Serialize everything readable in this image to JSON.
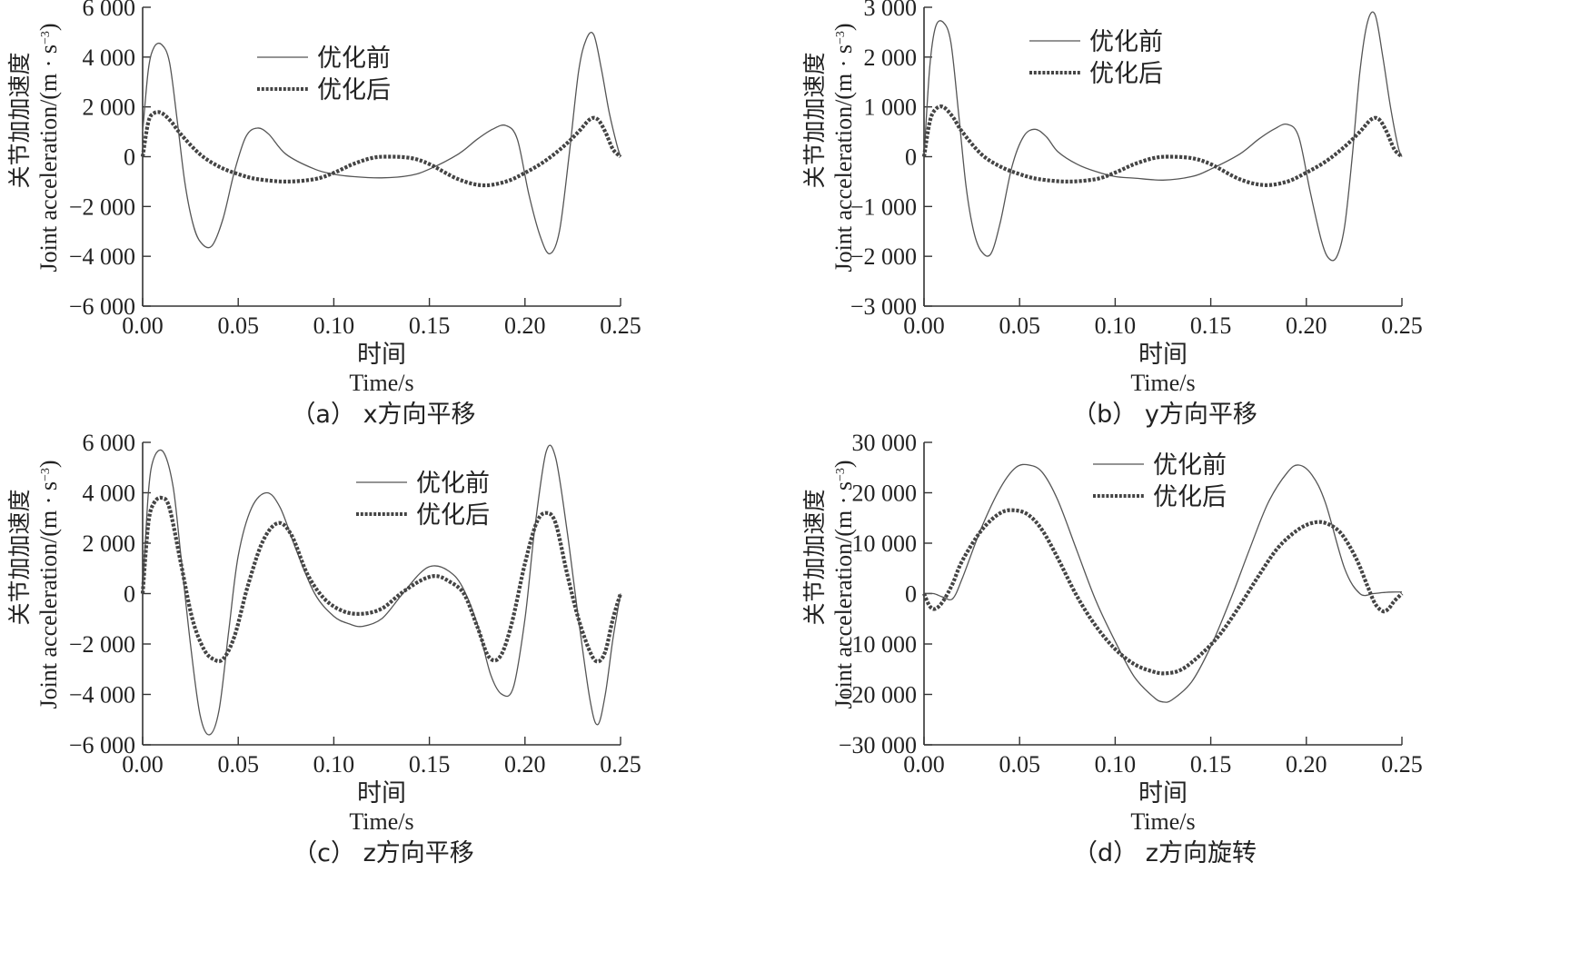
{
  "chart_data": [
    {
      "type": "line",
      "caption": "（a） x方向平移",
      "xlabel_cn": "时间",
      "xlabel_en": "Time/s",
      "ylabel_cn": "关节加加速度",
      "ylabel_en": "Joint acceleration/(m · s",
      "ylabel_unit_sup": "−3",
      "ylabel_unit_end": ")",
      "xlim": [
        0,
        0.25
      ],
      "ylim": [
        -6000,
        6000
      ],
      "xticks": [
        0,
        0.05,
        0.1,
        0.15,
        0.2,
        0.25
      ],
      "xtick_labels": [
        "0.00",
        "0.05",
        "0.10",
        "0.15",
        "0.20",
        "0.25"
      ],
      "yticks": [
        -6000,
        -4000,
        -2000,
        0,
        2000,
        4000,
        6000
      ],
      "ytick_labels": [
        "−6 000",
        "−4 000",
        "−2 000",
        "0",
        "2 000",
        "4 000",
        "6 000"
      ],
      "legend_position": "top-center",
      "series": [
        {
          "name": "优化前",
          "style": "solid",
          "x": [
            0,
            0.003,
            0.006,
            0.01,
            0.014,
            0.018,
            0.022,
            0.026,
            0.03,
            0.036,
            0.042,
            0.048,
            0.054,
            0.06,
            0.066,
            0.075,
            0.09,
            0.1,
            0.11,
            0.125,
            0.14,
            0.15,
            0.165,
            0.175,
            0.183,
            0.19,
            0.196,
            0.202,
            0.208,
            0.213,
            0.218,
            0.223,
            0.228,
            0.232,
            0.236,
            0.24,
            0.244,
            0.248,
            0.25
          ],
          "y": [
            1000,
            3500,
            4400,
            4500,
            3800,
            1500,
            -1000,
            -2600,
            -3400,
            -3600,
            -2500,
            -600,
            800,
            1150,
            900,
            100,
            -500,
            -700,
            -800,
            -850,
            -750,
            -500,
            100,
            700,
            1100,
            1250,
            700,
            -1500,
            -3200,
            -3900,
            -3000,
            0,
            3400,
            4700,
            4900,
            3500,
            1800,
            500,
            0
          ]
        },
        {
          "name": "优化后",
          "style": "dotted",
          "x": [
            0,
            0.003,
            0.006,
            0.01,
            0.015,
            0.02,
            0.03,
            0.04,
            0.05,
            0.06,
            0.075,
            0.09,
            0.1,
            0.11,
            0.12,
            0.128,
            0.14,
            0.15,
            0.165,
            0.178,
            0.19,
            0.2,
            0.21,
            0.22,
            0.228,
            0.234,
            0.238,
            0.242,
            0.246,
            0.25
          ],
          "y": [
            0,
            1400,
            1750,
            1750,
            1400,
            900,
            100,
            -400,
            -700,
            -900,
            -1000,
            -900,
            -650,
            -300,
            -50,
            0,
            -50,
            -300,
            -900,
            -1150,
            -1000,
            -650,
            -200,
            400,
            1000,
            1500,
            1500,
            1000,
            300,
            0
          ]
        }
      ]
    },
    {
      "type": "line",
      "caption": "（b） y方向平移",
      "xlabel_cn": "时间",
      "xlabel_en": "Time/s",
      "ylabel_cn": "关节加加速度",
      "ylabel_en": "Joint acceleration/(m · s",
      "ylabel_unit_sup": "−3",
      "ylabel_unit_end": ")",
      "xlim": [
        0,
        0.25
      ],
      "ylim": [
        -3000,
        3000
      ],
      "xticks": [
        0,
        0.05,
        0.1,
        0.15,
        0.2,
        0.25
      ],
      "xtick_labels": [
        "0.00",
        "0.05",
        "0.10",
        "0.15",
        "0.20",
        "0.25"
      ],
      "yticks": [
        -3000,
        -2000,
        -1000,
        0,
        1000,
        2000,
        3000
      ],
      "ytick_labels": [
        "−3 000",
        "−2 000",
        "−1 000",
        "0",
        "1 000",
        "2 000",
        "3 000"
      ],
      "legend_position": "top-center",
      "series": [
        {
          "name": "优化前",
          "style": "solid",
          "x": [
            0,
            0.003,
            0.006,
            0.01,
            0.014,
            0.018,
            0.022,
            0.026,
            0.03,
            0.035,
            0.04,
            0.046,
            0.052,
            0.058,
            0.064,
            0.07,
            0.08,
            0.09,
            0.1,
            0.11,
            0.125,
            0.14,
            0.15,
            0.165,
            0.175,
            0.183,
            0.19,
            0.196,
            0.202,
            0.208,
            0.212,
            0.216,
            0.22,
            0.224,
            0.228,
            0.232,
            0.236,
            0.24,
            0.244,
            0.248,
            0.25
          ],
          "y": [
            0,
            1800,
            2600,
            2700,
            2300,
            900,
            -600,
            -1500,
            -1900,
            -1950,
            -1300,
            -200,
            400,
            550,
            400,
            100,
            -150,
            -300,
            -400,
            -430,
            -470,
            -400,
            -250,
            50,
            350,
            550,
            650,
            400,
            -700,
            -1700,
            -2050,
            -2000,
            -1400,
            0,
            1700,
            2700,
            2850,
            2000,
            1000,
            200,
            0
          ]
        },
        {
          "name": "优化后",
          "style": "dotted",
          "x": [
            0,
            0.003,
            0.006,
            0.01,
            0.015,
            0.02,
            0.03,
            0.04,
            0.05,
            0.06,
            0.075,
            0.09,
            0.1,
            0.11,
            0.12,
            0.128,
            0.14,
            0.15,
            0.165,
            0.178,
            0.19,
            0.2,
            0.21,
            0.22,
            0.228,
            0.234,
            0.238,
            0.242,
            0.246,
            0.25
          ],
          "y": [
            0,
            700,
            950,
            1000,
            800,
            500,
            50,
            -200,
            -350,
            -450,
            -500,
            -450,
            -320,
            -150,
            -30,
            0,
            -30,
            -150,
            -450,
            -570,
            -500,
            -320,
            -100,
            200,
            500,
            750,
            750,
            500,
            150,
            0
          ]
        }
      ]
    },
    {
      "type": "line",
      "caption": "（c） z方向平移",
      "xlabel_cn": "时间",
      "xlabel_en": "Time/s",
      "ylabel_cn": "关节加加速度",
      "ylabel_en": "Joint acceleration/(m · s",
      "ylabel_unit_sup": "−3",
      "ylabel_unit_end": ")",
      "xlim": [
        0,
        0.25
      ],
      "ylim": [
        -6000,
        6000
      ],
      "xticks": [
        0,
        0.05,
        0.1,
        0.15,
        0.2,
        0.25
      ],
      "xtick_labels": [
        "0.00",
        "0.05",
        "0.10",
        "0.15",
        "0.20",
        "0.25"
      ],
      "yticks": [
        -6000,
        -4000,
        -2000,
        0,
        2000,
        4000,
        6000
      ],
      "ytick_labels": [
        "−6 000",
        "−4 000",
        "−2 000",
        "0",
        "2 000",
        "4 000",
        "6 000"
      ],
      "legend_position": "top-center",
      "series": [
        {
          "name": "优化前",
          "style": "solid",
          "x": [
            0,
            0.003,
            0.006,
            0.011,
            0.016,
            0.02,
            0.025,
            0.03,
            0.035,
            0.04,
            0.045,
            0.05,
            0.057,
            0.065,
            0.072,
            0.08,
            0.09,
            0.1,
            0.108,
            0.115,
            0.125,
            0.135,
            0.145,
            0.152,
            0.16,
            0.167,
            0.175,
            0.182,
            0.188,
            0.194,
            0.2,
            0.205,
            0.211,
            0.216,
            0.222,
            0.228,
            0.234,
            0.238,
            0.242,
            0.246,
            0.25
          ],
          "y": [
            0,
            4000,
            5400,
            5600,
            4200,
            1500,
            -2000,
            -4800,
            -5600,
            -4600,
            -1500,
            1500,
            3400,
            4000,
            3400,
            1800,
            0,
            -900,
            -1200,
            -1300,
            -1000,
            -100,
            800,
            1100,
            900,
            300,
            -1200,
            -3200,
            -4000,
            -3700,
            -1000,
            2500,
            5600,
            5400,
            2500,
            -1000,
            -4200,
            -5200,
            -4000,
            -1800,
            0
          ]
        },
        {
          "name": "优化后",
          "style": "dotted",
          "x": [
            0,
            0.003,
            0.006,
            0.01,
            0.014,
            0.02,
            0.026,
            0.032,
            0.037,
            0.042,
            0.048,
            0.055,
            0.063,
            0.071,
            0.078,
            0.086,
            0.095,
            0.105,
            0.115,
            0.125,
            0.135,
            0.145,
            0.153,
            0.16,
            0.168,
            0.175,
            0.181,
            0.187,
            0.193,
            0.2,
            0.206,
            0.211,
            0.216,
            0.222,
            0.228,
            0.234,
            0.238,
            0.242,
            0.246,
            0.25
          ],
          "y": [
            0,
            2800,
            3600,
            3800,
            3400,
            1200,
            -1000,
            -2200,
            -2600,
            -2600,
            -1700,
            300,
            2100,
            2800,
            2300,
            800,
            -200,
            -700,
            -800,
            -600,
            0,
            500,
            700,
            500,
            0,
            -1300,
            -2500,
            -2500,
            -1200,
            1200,
            2800,
            3200,
            2800,
            800,
            -1000,
            -2300,
            -2700,
            -2300,
            -1000,
            0
          ]
        }
      ]
    },
    {
      "type": "line",
      "caption": "（d） z方向旋转",
      "xlabel_cn": "时间",
      "xlabel_en": "Time/s",
      "ylabel_cn": "关节加加速度",
      "ylabel_en": "Joint acceleration/(m · s",
      "ylabel_unit_sup": "−3",
      "ylabel_unit_end": ")",
      "xlim": [
        0,
        0.25
      ],
      "ylim": [
        -30000,
        30000
      ],
      "xticks": [
        0,
        0.05,
        0.1,
        0.15,
        0.2,
        0.25
      ],
      "xtick_labels": [
        "0.00",
        "0.05",
        "0.10",
        "0.15",
        "0.20",
        "0.25"
      ],
      "yticks": [
        -30000,
        -20000,
        -10000,
        0,
        10000,
        20000,
        30000
      ],
      "ytick_labels": [
        "−30 000",
        "−20 000",
        "−10 000",
        "0",
        "10 000",
        "20 000",
        "30 000"
      ],
      "legend_position": "top-center",
      "series": [
        {
          "name": "优化前",
          "style": "solid",
          "x": [
            0,
            0.005,
            0.01,
            0.015,
            0.02,
            0.03,
            0.04,
            0.048,
            0.055,
            0.062,
            0.07,
            0.08,
            0.09,
            0.1,
            0.11,
            0.12,
            0.125,
            0.13,
            0.14,
            0.15,
            0.16,
            0.17,
            0.18,
            0.19,
            0.196,
            0.203,
            0.21,
            0.22,
            0.228,
            0.235,
            0.24,
            0.245,
            0.25
          ],
          "y": [
            0,
            0,
            -700,
            -1000,
            3000,
            13000,
            21000,
            25000,
            25500,
            24000,
            18500,
            8500,
            -1500,
            -9500,
            -16500,
            -20500,
            -21500,
            -21000,
            -17500,
            -10500,
            -1500,
            8500,
            18000,
            24000,
            25500,
            23500,
            18000,
            5000,
            0,
            0,
            200,
            300,
            300
          ]
        },
        {
          "name": "优化后",
          "style": "dotted",
          "x": [
            0,
            0.003,
            0.006,
            0.01,
            0.015,
            0.02,
            0.03,
            0.04,
            0.048,
            0.055,
            0.062,
            0.07,
            0.08,
            0.09,
            0.1,
            0.11,
            0.12,
            0.127,
            0.135,
            0.145,
            0.155,
            0.165,
            0.175,
            0.185,
            0.195,
            0.203,
            0.21,
            0.218,
            0.226,
            0.232,
            0.236,
            0.24,
            0.243,
            0.246,
            0.25
          ],
          "y": [
            0,
            -2500,
            -3000,
            -1500,
            2000,
            6500,
            12500,
            16000,
            16500,
            15500,
            12500,
            7000,
            -500,
            -6500,
            -11000,
            -14000,
            -15500,
            -15800,
            -15000,
            -12000,
            -8000,
            -2500,
            3500,
            9000,
            12500,
            14000,
            14000,
            12000,
            7000,
            1500,
            -2000,
            -3500,
            -3000,
            -1500,
            0
          ]
        }
      ]
    }
  ]
}
